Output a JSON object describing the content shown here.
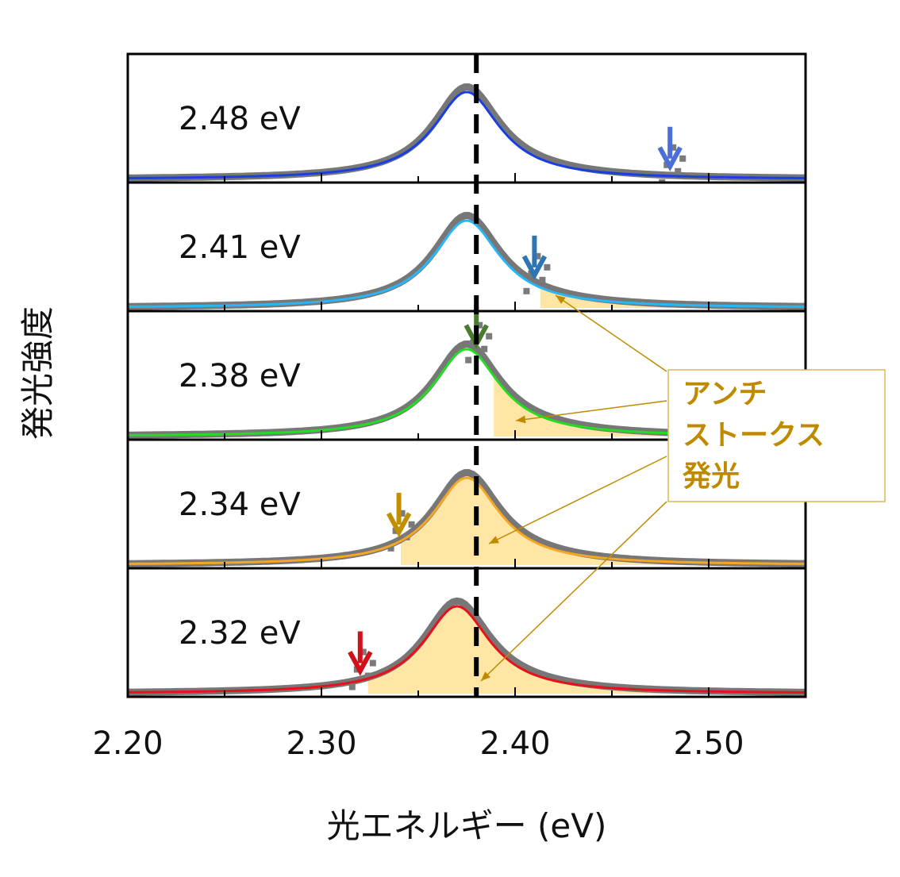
{
  "chart_data": {
    "type": "line",
    "title": "",
    "xlabel": "光エネルギー (eV)",
    "ylabel": "発光強度",
    "xlim": [
      2.2,
      2.55
    ],
    "x_ticks": [
      2.2,
      2.3,
      2.4,
      2.5
    ],
    "x_tick_labels": [
      "2.20",
      "2.30",
      "2.40",
      "2.50"
    ],
    "reference_line_x": 2.38,
    "peak_center": 2.375,
    "peak_width": 0.042,
    "annotation": {
      "lines": [
        "アンチ",
        "ストークス",
        "発光"
      ],
      "color": "#c08a00"
    },
    "series": [
      {
        "name": "2.48 eV",
        "excitation": 2.48,
        "fit_color": "#1a3fe0",
        "arrow_color": "#4a6fd6",
        "shade_from": null
      },
      {
        "name": "2.41 eV",
        "excitation": 2.41,
        "fit_color": "#29b6f6",
        "arrow_color": "#2e75b6",
        "shade_from": 2.413
      },
      {
        "name": "2.38 eV",
        "excitation": 2.38,
        "fit_color": "#22dd22",
        "arrow_color": "#4a7c2e",
        "shade_from": 2.389
      },
      {
        "name": "2.34 eV",
        "excitation": 2.34,
        "fit_color": "#f5a623",
        "arrow_color": "#c09000",
        "shade_from": 2.341
      },
      {
        "name": "2.32 eV",
        "excitation": 2.32,
        "fit_color": "#e8111b",
        "arrow_color": "#d0101a",
        "shade_from": 2.324
      }
    ]
  }
}
